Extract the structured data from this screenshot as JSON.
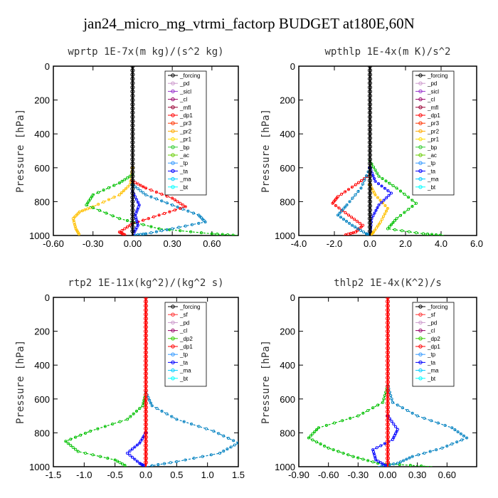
{
  "title": "jan24_micro_mg_vtrmi_factorp  BUDGET at180E,60N",
  "chart_data": [
    {
      "type": "line",
      "subtitle": "wprtp  1E-7x(m kg)/(s^2 kg)",
      "ylabel": "Pressure [hPa]",
      "xlim": [
        -0.6,
        0.8
      ],
      "xticks": [
        "-0.60",
        "-0.30",
        "0.00",
        "0.30",
        "0.60"
      ],
      "ylim": [
        0,
        1000
      ],
      "yticks": [
        "0",
        "200",
        "400",
        "600",
        "800",
        "1000"
      ],
      "legend": [
        "_forcing",
        "_pd",
        "_sicl",
        "_cl",
        "_mfl",
        "_dp1",
        "_pr3",
        "_pr2",
        "_pr1",
        "_bp",
        "_ac",
        "_tp",
        "_ta",
        "_ma",
        "_bt"
      ],
      "series": [
        {
          "name": "_pr1",
          "color": "#ffc000",
          "points": [
            [
              0.0,
              600
            ],
            [
              -0.02,
              700
            ],
            [
              -0.1,
              760
            ],
            [
              -0.3,
              830
            ],
            [
              -0.4,
              860
            ],
            [
              -0.45,
              900
            ],
            [
              -0.43,
              960
            ],
            [
              -0.4,
              1000
            ]
          ]
        },
        {
          "name": "_bp",
          "color": "#00c000",
          "points": [
            [
              0.0,
              640
            ],
            [
              -0.1,
              690
            ],
            [
              -0.3,
              760
            ],
            [
              -0.35,
              820
            ],
            [
              -0.1,
              900
            ],
            [
              0.2,
              960
            ],
            [
              0.6,
              990
            ],
            [
              0.8,
              1000
            ]
          ]
        },
        {
          "name": "_tp",
          "color": "#0080c0",
          "points": [
            [
              0.0,
              700
            ],
            [
              0.1,
              760
            ],
            [
              0.3,
              820
            ],
            [
              0.5,
              880
            ],
            [
              0.55,
              920
            ],
            [
              0.3,
              960
            ],
            [
              0.1,
              990
            ],
            [
              0.0,
              1000
            ]
          ]
        },
        {
          "name": "_pr3",
          "color": "#ff0000",
          "points": [
            [
              0.0,
              680
            ],
            [
              0.1,
              720
            ],
            [
              0.3,
              780
            ],
            [
              0.4,
              830
            ],
            [
              0.2,
              880
            ],
            [
              0.0,
              930
            ],
            [
              -0.1,
              980
            ],
            [
              -0.05,
              1000
            ]
          ]
        },
        {
          "name": "_ta",
          "color": "#0000ff",
          "points": [
            [
              0.0,
              740
            ],
            [
              0.05,
              820
            ],
            [
              0.02,
              880
            ],
            [
              0.04,
              940
            ],
            [
              0.0,
              1000
            ]
          ]
        },
        {
          "name": "_forcing",
          "color": "#000000",
          "points": [
            [
              0.0,
              0
            ],
            [
              0.0,
              1000
            ]
          ]
        }
      ]
    },
    {
      "type": "line",
      "subtitle": "wpthlp  1E-4x(m K)/s^2",
      "ylabel": "Pressure [hPa]",
      "xlim": [
        -4,
        6
      ],
      "xticks": [
        "-4.0",
        "-2.0",
        "0.0",
        "2.0",
        "4.0",
        "6.0"
      ],
      "ylim": [
        0,
        1000
      ],
      "yticks": [
        "0",
        "200",
        "400",
        "600",
        "800",
        "1000"
      ],
      "legend": [
        "_forcing",
        "_pd",
        "_sicl",
        "_cl",
        "_mfl",
        "_dp1",
        "_pr3",
        "_pr2",
        "_pr1",
        "_bp",
        "_ac",
        "_tp",
        "_ta",
        "_ma",
        "_bt"
      ],
      "series": [
        {
          "name": "_bp",
          "color": "#00c000",
          "points": [
            [
              0.0,
              560
            ],
            [
              0.5,
              650
            ],
            [
              1.5,
              720
            ],
            [
              2.6,
              810
            ],
            [
              1.5,
              900
            ],
            [
              1.0,
              960
            ],
            [
              3.0,
              990
            ],
            [
              4.2,
              1000
            ]
          ]
        },
        {
          "name": "_pr1",
          "color": "#ffc000",
          "points": [
            [
              0.0,
              700
            ],
            [
              0.3,
              760
            ],
            [
              1.0,
              840
            ],
            [
              0.6,
              920
            ],
            [
              0.2,
              980
            ],
            [
              0.0,
              1000
            ]
          ]
        },
        {
          "name": "_pr3",
          "color": "#ff0000",
          "points": [
            [
              0.0,
              640
            ],
            [
              -0.8,
              700
            ],
            [
              -1.8,
              770
            ],
            [
              -2.1,
              810
            ],
            [
              -1.2,
              880
            ],
            [
              -0.4,
              940
            ],
            [
              -0.8,
              980
            ],
            [
              -1.5,
              1000
            ]
          ]
        },
        {
          "name": "_tp",
          "color": "#0080c0",
          "points": [
            [
              0.0,
              600
            ],
            [
              -0.5,
              720
            ],
            [
              -1.3,
              820
            ],
            [
              -1.8,
              880
            ],
            [
              -1.0,
              940
            ],
            [
              -0.2,
              990
            ],
            [
              0.0,
              1000
            ]
          ]
        },
        {
          "name": "_ta",
          "color": "#0000ff",
          "points": [
            [
              0.0,
              600
            ],
            [
              0.3,
              680
            ],
            [
              1.2,
              750
            ],
            [
              0.5,
              820
            ],
            [
              0.1,
              900
            ],
            [
              0.0,
              1000
            ]
          ]
        },
        {
          "name": "_forcing",
          "color": "#000000",
          "points": [
            [
              0.0,
              0
            ],
            [
              0.0,
              1000
            ]
          ]
        }
      ]
    },
    {
      "type": "line",
      "subtitle": "rtp2  1E-11x(kg^2)/(kg^2 s)",
      "ylabel": "Pressure [hPa]",
      "xlim": [
        -1.5,
        1.5
      ],
      "xticks": [
        "-1.5",
        "-1.0",
        "-0.5",
        "0.0",
        "0.5",
        "1.0",
        "1.5"
      ],
      "ylim": [
        0,
        1000
      ],
      "yticks": [
        "0",
        "200",
        "400",
        "600",
        "800",
        "1000"
      ],
      "legend": [
        "_forcing",
        "_sf",
        "_pd",
        "_cl",
        "_dp2",
        "_dp1",
        "_tp",
        "_ta",
        "_ma",
        "_bt"
      ],
      "series": [
        {
          "name": "_dp1",
          "color": "#00c000",
          "points": [
            [
              0.0,
              560
            ],
            [
              -0.05,
              640
            ],
            [
              -0.3,
              720
            ],
            [
              -0.9,
              790
            ],
            [
              -1.3,
              850
            ],
            [
              -1.1,
              910
            ],
            [
              -0.5,
              960
            ],
            [
              -0.3,
              1000
            ]
          ]
        },
        {
          "name": "_tp",
          "color": "#0080c0",
          "points": [
            [
              0.0,
              560
            ],
            [
              0.1,
              640
            ],
            [
              0.5,
              720
            ],
            [
              1.1,
              790
            ],
            [
              1.5,
              860
            ],
            [
              1.2,
              920
            ],
            [
              0.5,
              970
            ],
            [
              0.0,
              1000
            ]
          ]
        },
        {
          "name": "_ta",
          "color": "#0000ff",
          "points": [
            [
              0.0,
              800
            ],
            [
              -0.1,
              860
            ],
            [
              -0.3,
              920
            ],
            [
              -0.1,
              980
            ],
            [
              0.0,
              1000
            ]
          ]
        },
        {
          "name": "_forcing",
          "color": "#ff0000",
          "points": [
            [
              0.0,
              0
            ],
            [
              0.0,
              1000
            ]
          ]
        }
      ]
    },
    {
      "type": "line",
      "subtitle": "thlp2  1E-4x(K^2)/s",
      "ylabel": "Pressure [hPa]",
      "xlim": [
        -0.9,
        0.9
      ],
      "xticks": [
        "-0.90",
        "-0.60",
        "-0.30",
        "0.00",
        "0.30",
        "0.60"
      ],
      "ylim": [
        0,
        1000
      ],
      "yticks": [
        "0",
        "200",
        "400",
        "600",
        "800",
        "1000"
      ],
      "legend": [
        "_forcing",
        "_sf",
        "_pd",
        "_cl",
        "_dp2",
        "_dp1",
        "_tp",
        "_ta",
        "_ma",
        "_bt"
      ],
      "series": [
        {
          "name": "_dp1",
          "color": "#00c000",
          "points": [
            [
              0.0,
              520
            ],
            [
              -0.05,
              620
            ],
            [
              -0.3,
              700
            ],
            [
              -0.7,
              770
            ],
            [
              -0.8,
              830
            ],
            [
              -0.6,
              890
            ],
            [
              -0.35,
              940
            ],
            [
              -0.1,
              980
            ],
            [
              0.45,
              1000
            ]
          ]
        },
        {
          "name": "_tp",
          "color": "#0080c0",
          "points": [
            [
              0.0,
              520
            ],
            [
              0.05,
              620
            ],
            [
              0.3,
              700
            ],
            [
              0.65,
              770
            ],
            [
              0.8,
              830
            ],
            [
              0.55,
              890
            ],
            [
              0.25,
              940
            ],
            [
              0.1,
              980
            ],
            [
              -0.1,
              1000
            ]
          ]
        },
        {
          "name": "_ta",
          "color": "#0000ff",
          "points": [
            [
              0.0,
              700
            ],
            [
              0.1,
              780
            ],
            [
              0.05,
              840
            ],
            [
              -0.15,
              900
            ],
            [
              -0.12,
              960
            ],
            [
              0.0,
              1000
            ]
          ]
        },
        {
          "name": "_forcing",
          "color": "#ff0000",
          "points": [
            [
              0.0,
              0
            ],
            [
              0.0,
              1000
            ]
          ]
        }
      ]
    }
  ],
  "legend_colors": {
    "_forcing": "#000000",
    "_pd": "#cc99cc",
    "_sicl": "#9933cc",
    "_cl": "#990066",
    "_mfl": "#990033",
    "_dp1": "#ff0000",
    "_pr3": "#ff3300",
    "_pr2": "#ffaa00",
    "_pr1": "#ffdd00",
    "_bp": "#33cc33",
    "_ac": "#66cc00",
    "_tp": "#3399ff",
    "_ta": "#0000ff",
    "_ma": "#00ccff",
    "_bt": "#00ffff",
    "_sf": "#ff3333",
    "_dp2": "#33cc00"
  }
}
